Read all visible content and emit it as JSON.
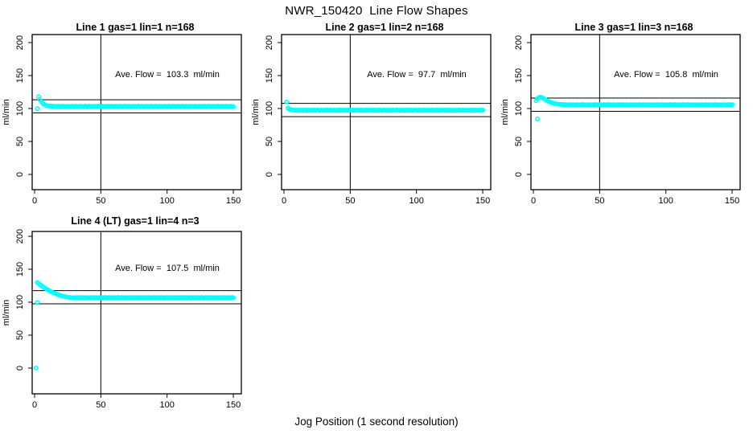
{
  "page": {
    "title": "NWR_150420  Line Flow Shapes",
    "xlabel": "Jog Position (1 second resolution)"
  },
  "colors": {
    "points": "#00FFFF",
    "axis": "#000000",
    "background": "#FFFFFF"
  },
  "axes": {
    "x_ticks": [
      0,
      50,
      100,
      150
    ],
    "y_ticks": [
      0,
      50,
      100,
      150,
      200
    ],
    "y_label": "ml/min",
    "vline_x": 50,
    "xlim": [
      0,
      150
    ],
    "ylim": [
      0,
      200
    ]
  },
  "chart_data": [
    {
      "type": "scatter",
      "title": "Line 1 gas=1 lin=1 n=168",
      "annotation": "Ave. Flow =  103.3  ml/min",
      "ave_flow_ml_min": 103.3,
      "gas": 1,
      "lin": 1,
      "n": 168,
      "hlines": [
        113.3,
        93.3
      ],
      "vline_x": 50,
      "xlabel": "",
      "ylabel": "ml/min",
      "xlim": [
        0,
        150
      ],
      "ylim": [
        0,
        200
      ],
      "x_start": 2,
      "x_step": 1,
      "y": [
        99.8,
        118.0,
        113.5,
        110.3,
        108.1,
        106.5,
        105.4,
        104.7,
        104.1,
        103.8,
        103.6,
        103.5,
        103.4,
        103.3,
        103.3,
        102.9,
        103.6,
        103.1,
        102.8,
        103.5,
        103.2,
        102.7,
        103.4,
        103.0,
        103.3,
        102.9,
        103.6,
        103.1,
        102.8,
        103.5,
        103.2,
        102.7,
        103.4,
        103.0,
        103.3,
        102.9,
        103.6,
        103.1,
        102.8,
        103.5,
        103.2,
        102.7,
        103.4,
        103.0,
        103.3,
        102.9,
        103.6,
        103.1,
        102.8,
        103.5,
        103.2,
        102.7,
        103.4,
        103.0,
        103.3,
        102.9,
        103.6,
        103.1,
        102.8,
        103.5,
        103.2,
        102.7,
        103.4,
        103.0,
        103.3,
        102.9,
        103.6,
        103.1,
        102.8,
        103.5,
        103.2,
        102.7,
        103.4,
        103.0,
        103.3,
        102.9,
        103.6,
        103.1,
        102.8,
        103.5,
        103.2,
        102.7,
        103.4,
        103.0,
        103.3,
        102.9,
        103.6,
        103.1,
        102.8,
        103.5,
        103.2,
        102.7,
        103.4,
        103.0,
        103.3,
        102.9,
        103.6,
        103.1,
        102.8,
        103.5,
        103.2,
        102.7,
        103.4,
        103.0,
        103.3,
        102.9,
        103.6,
        103.1,
        102.8,
        103.5,
        103.2,
        102.7,
        103.4,
        103.0,
        103.3,
        102.9,
        103.6,
        103.1,
        102.8,
        103.5,
        103.2,
        102.7,
        103.4,
        103.0,
        103.3,
        102.9,
        103.6,
        103.1,
        102.8,
        103.5,
        103.2,
        102.7,
        103.4,
        103.0,
        103.3,
        102.9,
        103.6,
        103.1,
        102.8,
        103.5,
        103.2,
        102.7,
        103.4,
        103.0,
        103.3,
        102.9,
        103.6,
        103.1,
        102.8
      ],
      "extra_points": []
    },
    {
      "type": "scatter",
      "title": "Line 2 gas=1 lin=2 n=168",
      "annotation": "Ave. Flow =  97.7  ml/min",
      "ave_flow_ml_min": 97.7,
      "gas": 1,
      "lin": 2,
      "n": 168,
      "hlines": [
        107.7,
        87.7
      ],
      "vline_x": 50,
      "xlabel": "",
      "ylabel": "ml/min",
      "xlim": [
        0,
        150
      ],
      "ylim": [
        0,
        200
      ],
      "x_start": 2,
      "x_step": 1,
      "y": [
        110.0,
        100.6,
        98.9,
        98.2,
        97.8,
        97.6,
        97.5,
        97.5,
        97.5,
        97.1,
        97.8,
        97.4,
        97.0,
        97.7,
        97.3,
        96.9,
        97.6,
        97.2,
        97.5,
        97.1,
        97.8,
        97.4,
        97.0,
        97.7,
        97.3,
        96.9,
        97.6,
        97.2,
        97.5,
        97.1,
        97.8,
        97.4,
        97.0,
        97.7,
        97.3,
        96.9,
        97.6,
        97.2,
        97.5,
        97.1,
        97.8,
        97.4,
        97.0,
        97.7,
        97.3,
        96.9,
        97.6,
        97.2,
        97.5,
        97.1,
        97.8,
        97.4,
        97.0,
        97.7,
        97.3,
        96.9,
        97.6,
        97.2,
        97.5,
        97.1,
        97.8,
        97.4,
        97.0,
        97.7,
        97.3,
        96.9,
        97.6,
        97.2,
        97.5,
        97.1,
        97.8,
        97.4,
        97.0,
        97.7,
        97.3,
        96.9,
        97.6,
        97.2,
        97.5,
        97.1,
        97.8,
        97.4,
        97.0,
        97.7,
        97.3,
        96.9,
        97.6,
        97.2,
        97.5,
        97.1,
        97.8,
        97.4,
        97.0,
        97.7,
        97.3,
        96.9,
        97.6,
        97.2,
        97.5,
        97.1,
        97.8,
        97.4,
        97.0,
        97.7,
        97.3,
        96.9,
        97.6,
        97.2,
        97.5,
        97.1,
        97.8,
        97.4,
        97.0,
        97.7,
        97.3,
        96.9,
        97.6,
        97.2,
        97.5,
        97.1,
        97.8,
        97.4,
        97.0,
        97.7,
        97.3,
        96.9,
        97.6,
        97.2,
        97.5,
        97.1,
        97.8,
        97.4,
        97.0,
        97.7,
        97.3,
        96.9,
        97.6,
        97.2,
        97.5,
        97.1,
        97.8,
        97.4,
        97.0,
        97.7,
        97.3,
        96.9,
        97.6,
        97.2,
        97.5
      ],
      "extra_points": []
    },
    {
      "type": "scatter",
      "title": "Line 3 gas=1 lin=3 n=168",
      "annotation": "Ave. Flow =  105.8  ml/min",
      "ave_flow_ml_min": 105.8,
      "gas": 1,
      "lin": 3,
      "n": 168,
      "hlines": [
        115.8,
        95.8
      ],
      "vline_x": 50,
      "xlabel": "",
      "ylabel": "ml/min",
      "xlim": [
        0,
        150
      ],
      "ylim": [
        0,
        200
      ],
      "x_start": 2,
      "x_step": 1,
      "y": [
        111.8,
        114.8,
        116.5,
        117.3,
        116.8,
        115.9,
        114.7,
        113.4,
        112.2,
        111.1,
        110.1,
        109.3,
        108.6,
        108.0,
        107.5,
        107.1,
        106.8,
        106.5,
        106.3,
        106.1,
        105.9,
        105.8,
        105.7,
        105.7,
        105.3,
        106.0,
        105.6,
        105.2,
        105.9,
        105.5,
        105.1,
        105.8,
        105.4,
        105.7,
        105.3,
        106.0,
        105.6,
        105.2,
        105.9,
        105.5,
        105.1,
        105.8,
        105.4,
        105.7,
        105.3,
        106.0,
        105.6,
        105.2,
        105.9,
        105.5,
        105.1,
        105.8,
        105.4,
        105.7,
        105.3,
        106.0,
        105.6,
        105.2,
        105.9,
        105.5,
        105.1,
        105.8,
        105.4,
        105.7,
        105.3,
        106.0,
        105.6,
        105.2,
        105.9,
        105.5,
        105.1,
        105.8,
        105.4,
        105.7,
        105.3,
        106.0,
        105.6,
        105.2,
        105.9,
        105.5,
        105.1,
        105.8,
        105.4,
        105.7,
        105.3,
        106.0,
        105.6,
        105.2,
        105.9,
        105.5,
        105.1,
        105.8,
        105.4,
        105.7,
        105.3,
        106.0,
        105.6,
        105.2,
        105.9,
        105.5,
        105.1,
        105.8,
        105.4,
        105.7,
        105.3,
        106.0,
        105.6,
        105.2,
        105.9,
        105.5,
        105.1,
        105.8,
        105.4,
        105.7,
        105.3,
        106.0,
        105.6,
        105.2,
        105.9,
        105.5,
        105.1,
        105.8,
        105.4,
        105.7,
        105.3,
        106.0,
        105.6,
        105.2,
        105.9,
        105.5,
        105.1,
        105.8,
        105.4,
        105.7,
        105.3,
        106.0,
        105.6,
        105.2,
        105.9,
        105.5,
        105.1,
        105.8,
        105.4,
        105.7,
        105.3,
        106.0,
        105.6,
        105.2,
        105.9
      ],
      "extra_points": [
        [
          3,
          84.0
        ]
      ]
    },
    {
      "type": "scatter",
      "title": "Line 4 (LT) gas=1 lin=4 n=3",
      "annotation": "Ave. Flow =  107.5  ml/min",
      "ave_flow_ml_min": 107.5,
      "gas": 1,
      "lin": 4,
      "n": 3,
      "hlines": [
        117.5,
        97.5
      ],
      "vline_x": 50,
      "xlabel": "",
      "ylabel": "ml/min",
      "xlim": [
        0,
        150
      ],
      "ylim": [
        0,
        200
      ],
      "x_start": 2,
      "x_step": 1,
      "y": [
        130.0,
        128.3,
        126.7,
        125.2,
        123.7,
        122.3,
        121.0,
        119.7,
        118.5,
        117.4,
        116.3,
        115.3,
        114.4,
        113.5,
        112.7,
        111.9,
        111.2,
        110.5,
        109.9,
        109.3,
        108.8,
        108.3,
        107.9,
        107.5,
        107.2,
        107.0,
        106.8,
        106.7,
        106.6,
        107.0,
        106.6,
        107.3,
        106.9,
        106.5,
        107.2,
        106.8,
        106.4,
        107.1,
        106.7,
        107.0,
        106.6,
        107.3,
        106.9,
        106.5,
        107.2,
        106.8,
        106.4,
        107.1,
        106.7,
        107.0,
        106.6,
        107.3,
        106.9,
        106.5,
        107.2,
        106.8,
        106.4,
        107.1,
        106.7,
        107.0,
        106.6,
        107.3,
        106.9,
        106.5,
        107.2,
        106.8,
        106.4,
        107.1,
        106.7,
        107.0,
        106.6,
        107.3,
        106.9,
        106.5,
        107.2,
        106.8,
        106.4,
        107.1,
        106.7,
        107.0,
        106.6,
        107.3,
        106.9,
        106.5,
        107.2,
        106.8,
        106.4,
        107.1,
        106.7,
        107.0,
        106.6,
        107.3,
        106.9,
        106.5,
        107.2,
        106.8,
        106.4,
        107.1,
        106.7,
        107.0,
        106.6,
        107.3,
        106.9,
        106.5,
        107.2,
        106.8,
        106.4,
        107.1,
        106.7,
        107.0,
        106.6,
        107.3,
        106.9,
        106.5,
        107.2,
        106.8,
        106.4,
        107.1,
        106.7,
        107.0,
        106.6,
        107.3,
        106.9,
        106.5,
        107.2,
        106.8,
        106.4,
        107.1,
        106.7,
        107.0,
        106.6,
        107.3,
        106.9,
        106.5,
        107.2,
        106.8,
        106.4,
        107.1,
        106.7,
        107.0,
        106.6,
        107.3,
        106.9,
        106.5,
        107.2,
        106.8,
        106.4,
        107.1,
        106.7
      ],
      "extra_points": [
        [
          1,
          0.0
        ],
        [
          2,
          99.5
        ]
      ]
    }
  ]
}
